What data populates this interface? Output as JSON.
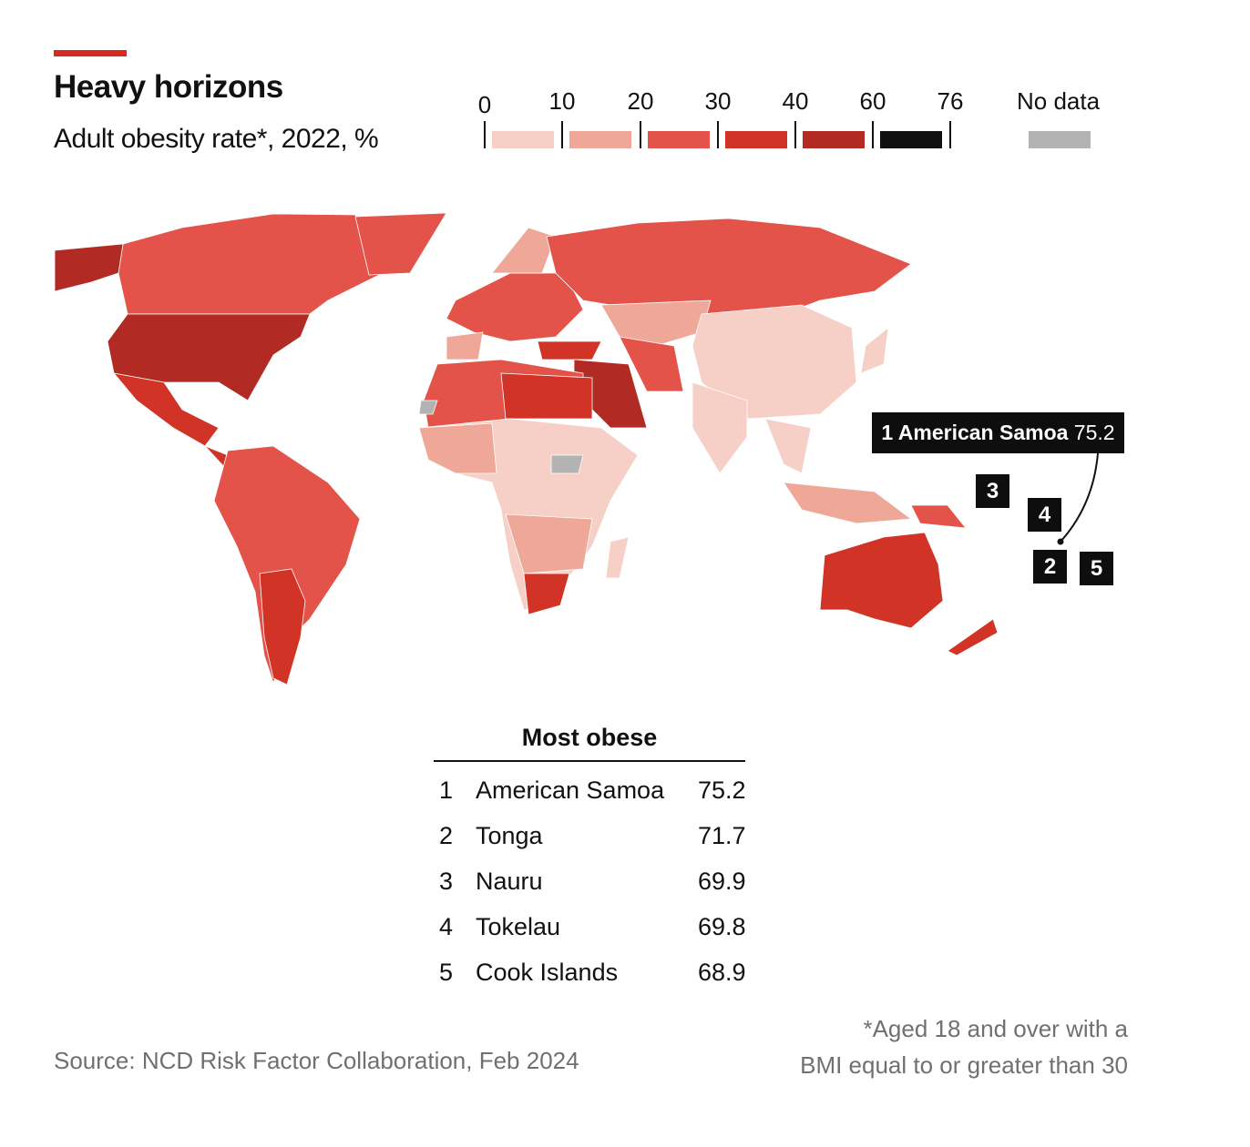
{
  "header": {
    "title": "Heavy horizons",
    "subtitle": "Adult obesity rate*, 2022, %"
  },
  "legend": {
    "ticks": [
      "0",
      "10",
      "20",
      "30",
      "40",
      "60",
      "76"
    ],
    "bands": [
      {
        "range": "0-10",
        "color": "#f6cfc6"
      },
      {
        "range": "10-20",
        "color": "#efa898"
      },
      {
        "range": "20-30",
        "color": "#e3534a"
      },
      {
        "range": "30-40",
        "color": "#d13326"
      },
      {
        "range": "40-60",
        "color": "#b12b24"
      },
      {
        "range": "60-76",
        "color": "#111111"
      }
    ],
    "no_data_label": "No data",
    "no_data_color": "#b3b3b3"
  },
  "map": {
    "callout": {
      "rank": "1",
      "name": "American Samoa",
      "value": "75.2"
    },
    "markers": [
      "2",
      "3",
      "4",
      "5"
    ]
  },
  "table": {
    "title": "Most obese",
    "rows": [
      {
        "rank": "1",
        "name": "American Samoa",
        "value": "75.2"
      },
      {
        "rank": "2",
        "name": "Tonga",
        "value": "71.7"
      },
      {
        "rank": "3",
        "name": "Nauru",
        "value": "69.9"
      },
      {
        "rank": "4",
        "name": "Tokelau",
        "value": "69.8"
      },
      {
        "rank": "5",
        "name": "Cook Islands",
        "value": "68.9"
      }
    ]
  },
  "footer": {
    "source": "Source: NCD Risk Factor Collaboration, Feb 2024",
    "note_line1": "*Aged 18 and over with a",
    "note_line2": "BMI equal to or greater than 30"
  }
}
